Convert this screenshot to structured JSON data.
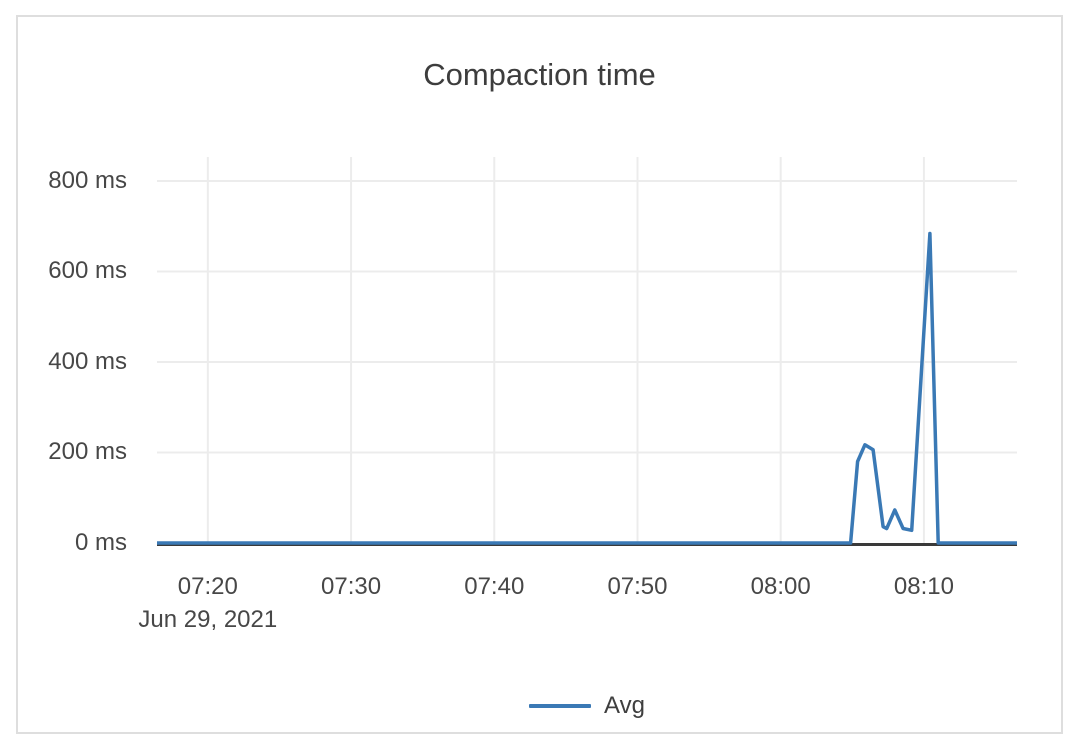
{
  "chart_data": {
    "type": "line",
    "title": "Compaction time",
    "x_axis": {
      "date_label": "Jun 29, 2021",
      "tick_labels": [
        "07:20",
        "07:30",
        "07:40",
        "07:50",
        "08:00",
        "08:10"
      ],
      "tick_minutes": [
        20,
        30,
        40,
        50,
        60,
        70
      ],
      "range_minutes": [
        16.45,
        76.5
      ],
      "minutes_measured_after": "07:00"
    },
    "y_axis": {
      "tick_labels": [
        "0 ms",
        "200 ms",
        "400 ms",
        "600 ms",
        "800 ms"
      ],
      "tick_values": [
        0,
        200,
        400,
        600,
        800
      ],
      "range_ms": [
        0,
        853
      ],
      "unit": "ms"
    },
    "series": [
      {
        "name": "Avg",
        "color": "#3a79b5",
        "points": [
          [
            16.45,
            0
          ],
          [
            64.88,
            0
          ],
          [
            65.37,
            180
          ],
          [
            65.88,
            217
          ],
          [
            66.45,
            206
          ],
          [
            67.15,
            36
          ],
          [
            67.4,
            32
          ],
          [
            67.97,
            73
          ],
          [
            68.55,
            32
          ],
          [
            69.15,
            28
          ],
          [
            70.42,
            684
          ],
          [
            71.0,
            0
          ],
          [
            76.5,
            0
          ]
        ]
      }
    ],
    "legend": {
      "position": "bottom",
      "entries": [
        "Avg"
      ]
    },
    "grid": true
  },
  "style": {
    "series_blue": "#3a79b5",
    "grid_color": "#ececec",
    "axis_line_color": "#3a3a3a",
    "tick_text_color": "#474747",
    "title_color": "#3d3d3d",
    "card_border_color": "#dedede",
    "background": "#ffffff"
  }
}
